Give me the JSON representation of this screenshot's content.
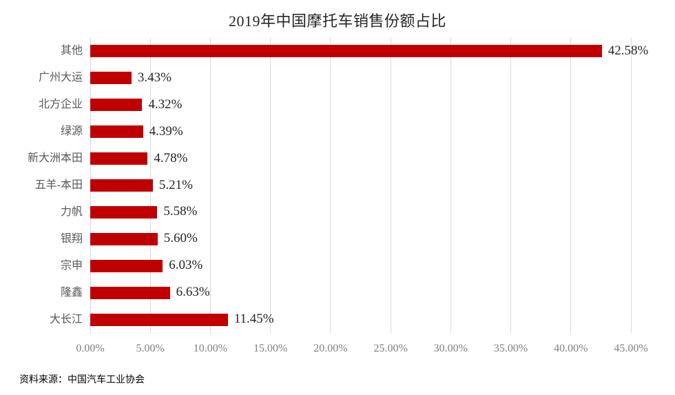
{
  "title": "2019年中国摩托车销售份额占比",
  "source_note": "资料来源：中国汽车工业协会",
  "chart_data": {
    "type": "bar",
    "orientation": "horizontal",
    "title": "2019年中国摩托车销售份额占比",
    "categories": [
      "其他",
      "广州大运",
      "北方企业",
      "绿源",
      "新大洲本田",
      "五羊-本田",
      "力帆",
      "银翔",
      "宗申",
      "隆鑫",
      "大长江"
    ],
    "values": [
      42.58,
      3.43,
      4.32,
      4.39,
      4.78,
      5.21,
      5.58,
      5.6,
      6.03,
      6.63,
      11.45
    ],
    "data_labels": [
      "42.58%",
      "3.43%",
      "4.32%",
      "4.39%",
      "4.78%",
      "5.21%",
      "5.58%",
      "5.60%",
      "6.03%",
      "6.63%",
      "11.45%"
    ],
    "category_order": "top-to-bottom",
    "xlim": [
      0,
      45
    ],
    "x_ticks": [
      0,
      5,
      10,
      15,
      20,
      25,
      30,
      35,
      40,
      45
    ],
    "x_tick_labels": [
      "0.00%",
      "5.00%",
      "10.00%",
      "15.00%",
      "20.00%",
      "25.00%",
      "30.00%",
      "35.00%",
      "40.00%",
      "45.00%"
    ],
    "grid": "vertical-only",
    "legend": "none",
    "colors": {
      "bar": "#C00000",
      "gridline": "#D9D9D9",
      "category_label": "#595959",
      "value_label": "#262626",
      "axis_label": "#7F7F7F",
      "title": "#262626",
      "background": "#FFFFFF"
    }
  }
}
